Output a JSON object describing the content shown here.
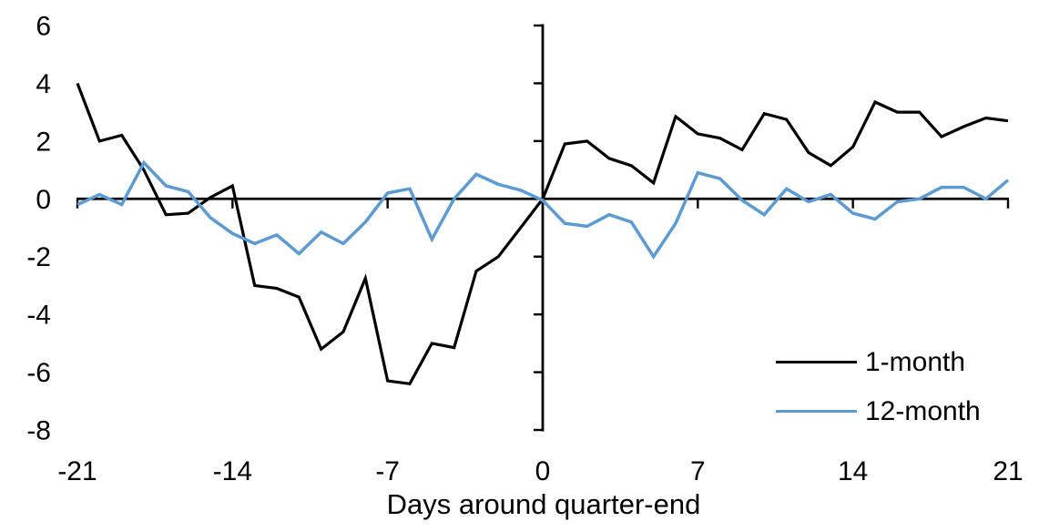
{
  "chart_data": {
    "type": "line",
    "title": "",
    "xlabel": "Days around quarter-end",
    "ylabel": "",
    "xlim": [
      -21,
      21
    ],
    "ylim": [
      -8,
      6
    ],
    "grid": false,
    "legend_position": "lower-right",
    "x_ticks": [
      -21,
      -14,
      -7,
      0,
      7,
      14,
      21
    ],
    "y_ticks": [
      6,
      4,
      2,
      0,
      -2,
      -4,
      -6,
      -8
    ],
    "x": [
      -21,
      -20,
      -19,
      -18,
      -17,
      -16,
      -15,
      -14,
      -13,
      -12,
      -11,
      -10,
      -9,
      -8,
      -7,
      -6,
      -5,
      -4,
      -3,
      -2,
      -1,
      0,
      1,
      2,
      3,
      4,
      5,
      6,
      7,
      8,
      9,
      10,
      11,
      12,
      13,
      14,
      15,
      16,
      17,
      18,
      19,
      20,
      21
    ],
    "series": [
      {
        "name": "1-month",
        "color": "#000000",
        "values": [
          4.0,
          2.0,
          2.2,
          1.0,
          -0.55,
          -0.5,
          0.05,
          0.45,
          -3.0,
          -3.1,
          -3.4,
          -5.2,
          -4.6,
          -2.75,
          -6.3,
          -6.4,
          -5.0,
          -5.15,
          -2.5,
          -2.0,
          -1.0,
          0.0,
          1.9,
          2.0,
          1.4,
          1.15,
          0.55,
          2.85,
          2.25,
          2.1,
          1.7,
          2.95,
          2.75,
          1.6,
          1.15,
          1.8,
          3.35,
          3.0,
          3.0,
          2.15,
          2.5,
          2.8,
          2.7
        ]
      },
      {
        "name": "12-month",
        "color": "#5B9BD5",
        "values": [
          -0.2,
          0.15,
          -0.2,
          1.25,
          0.45,
          0.25,
          -0.65,
          -1.2,
          -1.55,
          -1.25,
          -1.9,
          -1.15,
          -1.55,
          -0.8,
          0.2,
          0.35,
          -1.4,
          0.0,
          0.85,
          0.5,
          0.3,
          -0.05,
          -0.85,
          -0.95,
          -0.55,
          -0.8,
          -2.0,
          -0.85,
          0.9,
          0.7,
          -0.05,
          -0.55,
          0.35,
          -0.1,
          0.15,
          -0.5,
          -0.7,
          -0.1,
          0.0,
          0.4,
          0.4,
          0.0,
          0.65
        ]
      }
    ]
  }
}
